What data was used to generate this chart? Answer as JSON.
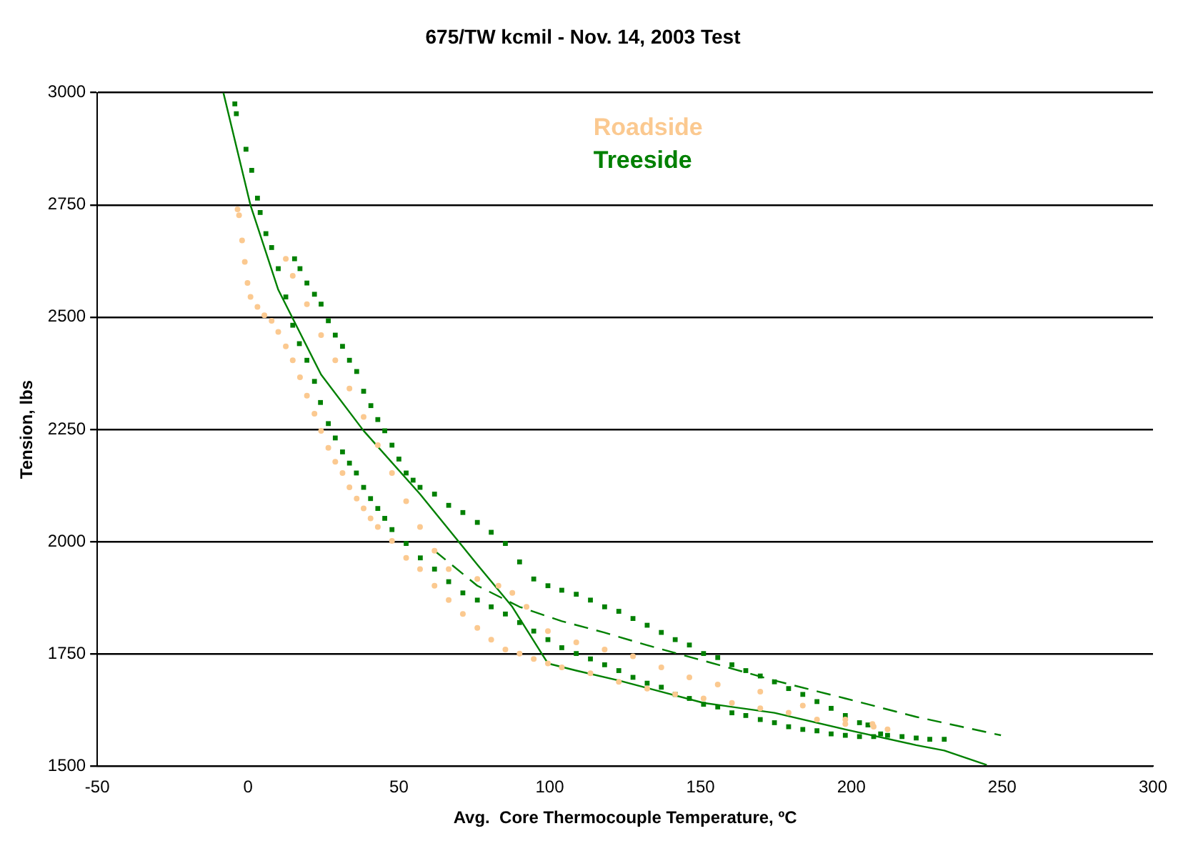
{
  "chart_data": {
    "type": "scatter",
    "title": "675/TW kcmil - Nov. 14, 2003 Test",
    "xlabel": "Avg.  Core Thermocouple Temperature, ºC",
    "ylabel": "Tension, lbs",
    "xlim": [
      -50,
      300
    ],
    "xticks": [
      -50,
      0,
      50,
      100,
      150,
      200,
      250,
      300
    ],
    "ylim": [
      1500,
      3000
    ],
    "yticks": [
      1500,
      1750,
      2000,
      2250,
      2500,
      2750,
      3000
    ],
    "grid": "y",
    "legend": "top",
    "series": [
      {
        "name": "Roadside",
        "type": "scatter",
        "marker": "circle",
        "color": "#fbc990",
        "x": [
          -3.5,
          -3,
          -2,
          -1.1,
          -0.2,
          0.8,
          3.1,
          5.4,
          7.8,
          10,
          12.5,
          14.8,
          17.2,
          19.5,
          22,
          24.2,
          26.6,
          28.9,
          31.3,
          33.6,
          36,
          38.3,
          40.6,
          43,
          47.7,
          52.4,
          57,
          61.8,
          66.5,
          71.2,
          76,
          80.6,
          85.3,
          90,
          94.7,
          99.4,
          104,
          113.5,
          122.9,
          132.3,
          141.6,
          151,
          160.4,
          169.8,
          179.2,
          188.6,
          198,
          207.4,
          212,
          12.5,
          14.8,
          19.5,
          24.2,
          28.9,
          33.6,
          38.3,
          43,
          47.7,
          52.4,
          57,
          61.8,
          66.5,
          76,
          83,
          87.6,
          92.3,
          99.4,
          108.8,
          118.2,
          127.6,
          137,
          146.3,
          155.7,
          169.8,
          183.9,
          198,
          207
        ],
        "values": [
          2740,
          2727,
          2671,
          2623,
          2576,
          2545,
          2523,
          2504,
          2492,
          2467,
          2435,
          2404,
          2366,
          2325,
          2285,
          2247,
          2209,
          2178,
          2153,
          2121,
          2096,
          2074,
          2052,
          2033,
          2002,
          1964,
          1939,
          1902,
          1870,
          1839,
          1808,
          1782,
          1760,
          1751,
          1739,
          1729,
          1720,
          1707,
          1688,
          1673,
          1660,
          1651,
          1641,
          1629,
          1619,
          1604,
          1594,
          1588,
          1582,
          2630,
          2592,
          2529,
          2460,
          2404,
          2341,
          2278,
          2215,
          2153,
          2090,
          2033,
          1980,
          1939,
          1917,
          1902,
          1886,
          1855,
          1801,
          1776,
          1760,
          1745,
          1720,
          1698,
          1682,
          1666,
          1635,
          1604,
          1594
        ]
      },
      {
        "name": "Treeside",
        "type": "scatter",
        "marker": "square",
        "color": "#008000",
        "x": [
          -4.4,
          -3.9,
          -0.7,
          1.2,
          3.1,
          4,
          5.9,
          7.8,
          10,
          12.5,
          14.8,
          17,
          19.5,
          22,
          24,
          26.6,
          28.9,
          31.3,
          33.6,
          35.9,
          38.3,
          40.6,
          43,
          45.3,
          47.7,
          52.4,
          57.1,
          61.8,
          66.5,
          71.2,
          76,
          80.6,
          85.3,
          90,
          94.7,
          99.4,
          104,
          108.8,
          113.5,
          118.2,
          122.9,
          127.6,
          132.3,
          137,
          141.6,
          146.3,
          151,
          155.7,
          160.4,
          165,
          169.8,
          174.5,
          179.2,
          183.9,
          188.6,
          193.3,
          198,
          202.7,
          207.4,
          212,
          15.4,
          17.2,
          19.5,
          22,
          24.2,
          26.6,
          28.9,
          31.3,
          33.6,
          36,
          38.3,
          40.7,
          43,
          45.3,
          47.7,
          50,
          52.4,
          54.7,
          57,
          61.8,
          66.5,
          71.2,
          76,
          80.6,
          85.3,
          90,
          94.7,
          99.4,
          104,
          108.8,
          113.5,
          118.2,
          122.9,
          127.6,
          132.3,
          137,
          141.6,
          146.3,
          151,
          155.7,
          160.4,
          165,
          169.8,
          174.5,
          179.2,
          183.9,
          188.6,
          193.3,
          198,
          202.7,
          205.5,
          209.7,
          216.8,
          221.5,
          226,
          230.8
        ],
        "values": [
          2975,
          2953,
          2874,
          2827,
          2765,
          2733,
          2686,
          2655,
          2608,
          2545,
          2482,
          2441,
          2404,
          2357,
          2310,
          2263,
          2231,
          2200,
          2175,
          2153,
          2121,
          2096,
          2074,
          2052,
          2027,
          1996,
          1964,
          1939,
          1911,
          1886,
          1870,
          1855,
          1839,
          1820,
          1801,
          1782,
          1764,
          1751,
          1739,
          1726,
          1713,
          1698,
          1685,
          1676,
          1660,
          1651,
          1638,
          1632,
          1619,
          1613,
          1604,
          1597,
          1588,
          1582,
          1579,
          1572,
          1569,
          1566,
          1566,
          1569,
          2630,
          2608,
          2576,
          2551,
          2529,
          2492,
          2460,
          2435,
          2404,
          2379,
          2335,
          2303,
          2272,
          2247,
          2215,
          2184,
          2153,
          2137,
          2121,
          2106,
          2081,
          2065,
          2043,
          2021,
          1996,
          1955,
          1917,
          1902,
          1892,
          1883,
          1870,
          1855,
          1845,
          1829,
          1814,
          1798,
          1782,
          1770,
          1751,
          1742,
          1726,
          1713,
          1701,
          1688,
          1673,
          1660,
          1644,
          1629,
          1613,
          1597,
          1592,
          1572,
          1566,
          1563,
          1560,
          1560
        ]
      },
      {
        "type": "line",
        "line_style": "solid",
        "marker": "none",
        "color": "#008000",
        "x": [
          -8.2,
          0.8,
          10,
          24.2,
          38.3,
          57,
          76,
          87.6,
          99.4,
          108.8,
          122.9,
          137,
          151,
          174.5,
          198,
          221.5,
          230.8,
          244.9
        ],
        "values": [
          3000,
          2749,
          2561,
          2372,
          2247,
          2106,
          1949,
          1855,
          1729,
          1713,
          1691,
          1666,
          1641,
          1619,
          1582,
          1547,
          1535,
          1503
        ]
      },
      {
        "type": "line",
        "line_style": "dashed",
        "marker": "none",
        "color": "#008000",
        "x": [
          61.8,
          76,
          90,
          104,
          118,
          132,
          151,
          174.5,
          198,
          221.5,
          249.6
        ],
        "values": [
          1980,
          1902,
          1855,
          1823,
          1798,
          1770,
          1735,
          1691,
          1651,
          1610,
          1569
        ]
      }
    ]
  }
}
